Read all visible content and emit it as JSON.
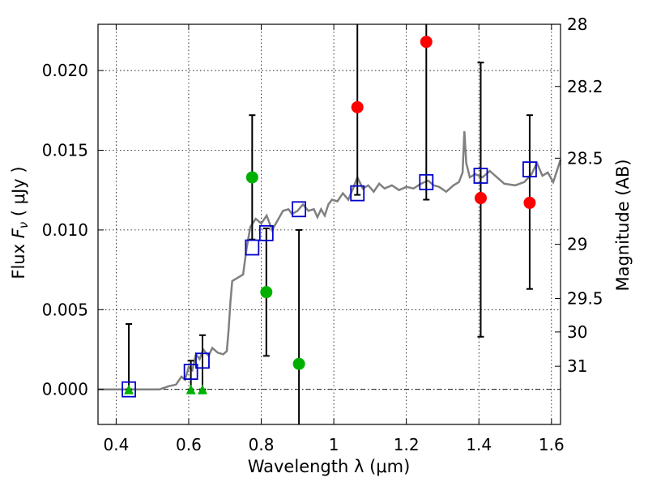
{
  "chart_data": {
    "type": "scatter",
    "xlabel": "Wavelength  λ (μm)",
    "ylabel_prefix": "Flux  ",
    "ylabel_var": "F",
    "ylabel_sub": "ν",
    "ylabel_suffix": "  ( μJy )",
    "y2label": "Magnitude (AB)",
    "xlim": [
      0.35,
      1.625
    ],
    "ylim": [
      -0.0022,
      0.0229
    ],
    "grid": true,
    "xticks": [
      0.4,
      0.6,
      0.8,
      1.0,
      1.2,
      1.4,
      1.6
    ],
    "xtick_labels": [
      "0.4",
      "0.6",
      "0.8",
      "1",
      "1.2",
      "1.4",
      "1.6"
    ],
    "yticks": [
      0.0,
      0.005,
      0.01,
      0.015,
      0.02
    ],
    "ytick_labels": [
      "0.000",
      "0.005",
      "0.010",
      "0.015",
      "0.020"
    ],
    "mag_ticks": [
      {
        "label": "28",
        "flux": 0.0229
      },
      {
        "label": "28.2",
        "flux": 0.019
      },
      {
        "label": "28.5",
        "flux": 0.0145
      },
      {
        "label": "29",
        "flux": 0.0091
      },
      {
        "label": "29.5",
        "flux": 0.0057
      },
      {
        "label": "30",
        "flux": 0.0036
      },
      {
        "label": "31",
        "flux": 0.00145
      }
    ],
    "model_color": "#808080",
    "model_spectrum": [
      [
        0.35,
        0.0
      ],
      [
        0.52,
        0.0
      ],
      [
        0.545,
        0.0002
      ],
      [
        0.565,
        0.0003
      ],
      [
        0.58,
        0.0008
      ],
      [
        0.59,
        0.0006
      ],
      [
        0.6,
        0.0014
      ],
      [
        0.61,
        0.0012
      ],
      [
        0.62,
        0.0022
      ],
      [
        0.63,
        0.0019
      ],
      [
        0.64,
        0.0025
      ],
      [
        0.655,
        0.0021
      ],
      [
        0.665,
        0.0026
      ],
      [
        0.68,
        0.0023
      ],
      [
        0.695,
        0.0022
      ],
      [
        0.705,
        0.0024
      ],
      [
        0.71,
        0.0037
      ],
      [
        0.715,
        0.0055
      ],
      [
        0.72,
        0.0068
      ],
      [
        0.735,
        0.007
      ],
      [
        0.75,
        0.0072
      ],
      [
        0.76,
        0.0089
      ],
      [
        0.77,
        0.0102
      ],
      [
        0.785,
        0.0107
      ],
      [
        0.8,
        0.0104
      ],
      [
        0.815,
        0.0109
      ],
      [
        0.83,
        0.01
      ],
      [
        0.845,
        0.0106
      ],
      [
        0.86,
        0.0112
      ],
      [
        0.875,
        0.0113
      ],
      [
        0.885,
        0.011
      ],
      [
        0.9,
        0.0112
      ],
      [
        0.915,
        0.0116
      ],
      [
        0.93,
        0.0112
      ],
      [
        0.945,
        0.0113
      ],
      [
        0.955,
        0.0108
      ],
      [
        0.965,
        0.0113
      ],
      [
        0.975,
        0.0109
      ],
      [
        0.985,
        0.0116
      ],
      [
        0.995,
        0.0119
      ],
      [
        1.01,
        0.0118
      ],
      [
        1.025,
        0.0123
      ],
      [
        1.04,
        0.0119
      ],
      [
        1.055,
        0.0127
      ],
      [
        1.065,
        0.0133
      ],
      [
        1.08,
        0.0126
      ],
      [
        1.095,
        0.0128
      ],
      [
        1.11,
        0.0124
      ],
      [
        1.125,
        0.0129
      ],
      [
        1.14,
        0.0126
      ],
      [
        1.16,
        0.0128
      ],
      [
        1.18,
        0.0125
      ],
      [
        1.2,
        0.0127
      ],
      [
        1.22,
        0.0126
      ],
      [
        1.24,
        0.0129
      ],
      [
        1.26,
        0.0131
      ],
      [
        1.275,
        0.0128
      ],
      [
        1.29,
        0.0127
      ],
      [
        1.31,
        0.0124
      ],
      [
        1.33,
        0.0128
      ],
      [
        1.345,
        0.013
      ],
      [
        1.355,
        0.0136
      ],
      [
        1.36,
        0.0162
      ],
      [
        1.365,
        0.0142
      ],
      [
        1.375,
        0.0133
      ],
      [
        1.39,
        0.0135
      ],
      [
        1.41,
        0.0133
      ],
      [
        1.43,
        0.0137
      ],
      [
        1.45,
        0.0133
      ],
      [
        1.47,
        0.0129
      ],
      [
        1.5,
        0.0128
      ],
      [
        1.525,
        0.013
      ],
      [
        1.545,
        0.0135
      ],
      [
        1.56,
        0.0142
      ],
      [
        1.575,
        0.0134
      ],
      [
        1.59,
        0.0136
      ],
      [
        1.605,
        0.013
      ],
      [
        1.625,
        0.0144
      ]
    ],
    "model_photometry": {
      "marker": "open-square",
      "color": "#0000cc",
      "points": [
        [
          0.435,
          0.0
        ],
        [
          0.606,
          0.0011
        ],
        [
          0.638,
          0.0018
        ],
        [
          0.775,
          0.0089
        ],
        [
          0.814,
          0.0098
        ],
        [
          0.904,
          0.0113
        ],
        [
          1.065,
          0.0123
        ],
        [
          1.255,
          0.013
        ],
        [
          1.405,
          0.0134
        ],
        [
          1.54,
          0.0138
        ]
      ]
    },
    "detections_optical": {
      "marker": "circle",
      "color": "#00b000",
      "points": [
        [
          0.775,
          0.0133
        ],
        [
          0.814,
          0.0061
        ],
        [
          0.904,
          0.0016
        ]
      ]
    },
    "detections_nir": {
      "marker": "circle",
      "color": "#ff0000",
      "points": [
        [
          1.065,
          0.0177
        ],
        [
          1.255,
          0.0218
        ],
        [
          1.405,
          0.012
        ],
        [
          1.54,
          0.0117
        ]
      ]
    },
    "upper_limits": {
      "marker": "triangle",
      "color": "#00b000",
      "points": [
        [
          0.435,
          0.0
        ],
        [
          0.606,
          0.0
        ],
        [
          0.638,
          0.0
        ]
      ]
    },
    "error_bars": [
      {
        "x": 0.435,
        "lo": 0.0,
        "hi": 0.0041
      },
      {
        "x": 0.606,
        "lo": 0.0,
        "hi": 0.0018
      },
      {
        "x": 0.638,
        "lo": 0.0,
        "hi": 0.0034
      },
      {
        "x": 0.775,
        "lo": 0.0094,
        "hi": 0.0172
      },
      {
        "x": 0.814,
        "lo": 0.0021,
        "hi": 0.0101
      },
      {
        "x": 0.904,
        "lo": -0.0022,
        "hi": 0.01
      },
      {
        "x": 1.065,
        "lo": 0.0122,
        "hi": 0.0229
      },
      {
        "x": 1.255,
        "lo": 0.0119,
        "hi": 0.0229
      },
      {
        "x": 1.405,
        "lo": 0.0033,
        "hi": 0.0205
      },
      {
        "x": 1.54,
        "lo": 0.0063,
        "hi": 0.0172
      }
    ]
  }
}
